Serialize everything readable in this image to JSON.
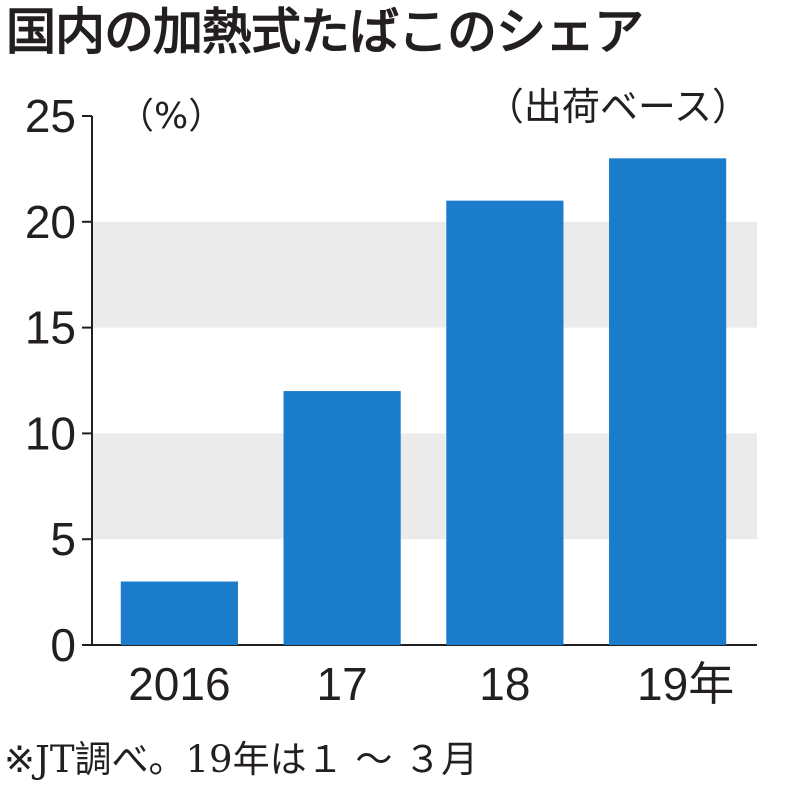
{
  "title": "国内の加熱式たばこのシェア",
  "source_note": "※JT調べ。19年は１ ～ ３月",
  "colors": {
    "bar": "#1b7ccc",
    "band": "#ebebeb",
    "axis": "#231f20"
  },
  "chart_data": {
    "type": "bar",
    "title": "国内の加熱式たばこのシェア",
    "subtitle": "（出荷ベース）",
    "ylabel": "（%）",
    "xlabel": "",
    "categories": [
      "2016",
      "17",
      "18",
      "19年"
    ],
    "values": [
      3,
      12,
      21,
      23
    ],
    "ylim": [
      0,
      25
    ],
    "yticks": [
      0,
      5,
      10,
      15,
      20,
      25
    ],
    "grid": "alternating horizontal bands",
    "legend": "none"
  }
}
